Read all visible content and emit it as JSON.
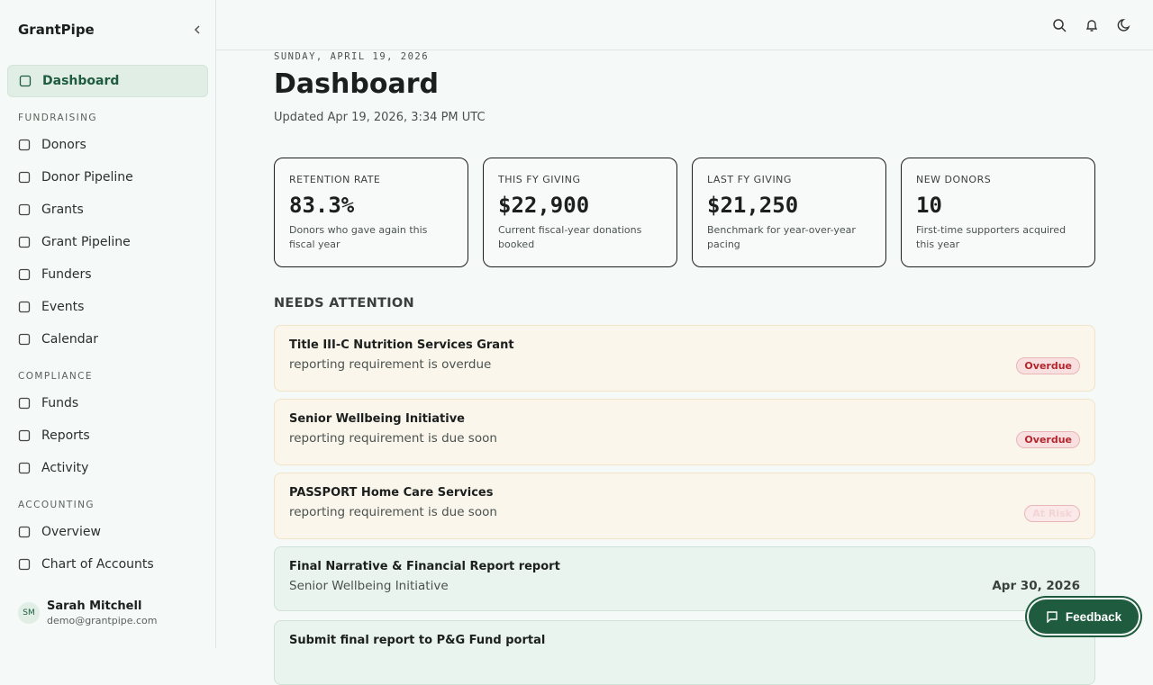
{
  "sidebar": {
    "brand": "GrantPipe",
    "active": "Dashboard",
    "sections": [
      {
        "title": "FUNDRAISING",
        "items": [
          "Donors",
          "Donor Pipeline",
          "Grants",
          "Grant Pipeline",
          "Funders",
          "Events",
          "Calendar"
        ]
      },
      {
        "title": "COMPLIANCE",
        "items": [
          "Funds",
          "Reports",
          "Activity"
        ]
      },
      {
        "title": "ACCOUNTING",
        "items": [
          "Overview",
          "Chart of Accounts"
        ]
      }
    ],
    "user": {
      "initials": "SM",
      "name": "Sarah Mitchell",
      "email": "demo@grantpipe.com"
    }
  },
  "page": {
    "date": "SUNDAY, APRIL 19, 2026",
    "title": "Dashboard",
    "updated": "Updated Apr 19, 2026, 3:34 PM UTC"
  },
  "stats": [
    {
      "label": "RETENTION RATE",
      "value": "83.3%",
      "note": "Donors who gave again this fiscal year"
    },
    {
      "label": "THIS FY GIVING",
      "value": "$22,900",
      "note": "Current fiscal-year donations booked"
    },
    {
      "label": "LAST FY GIVING",
      "value": "$21,250",
      "note": "Benchmark for year-over-year pacing"
    },
    {
      "label": "NEW DONORS",
      "value": "10",
      "note": "First-time supporters acquired this year"
    }
  ],
  "attention": {
    "title": "NEEDS ATTENTION",
    "items": [
      {
        "title": "Title III-C Nutrition Services Grant",
        "subtitle": "reporting requirement is overdue",
        "badge": "Overdue"
      },
      {
        "title": "Senior Wellbeing Initiative",
        "subtitle": "reporting requirement is due soon",
        "badge": "Overdue"
      },
      {
        "title": "PASSPORT Home Care Services",
        "subtitle": "reporting requirement is due soon",
        "badge": "At Risk"
      },
      {
        "title": "Final Narrative & Financial Report report",
        "subtitle": "Senior Wellbeing Initiative",
        "date": "Apr 30, 2026"
      },
      {
        "title": "Submit final report to P&G Fund portal",
        "subtitle": ""
      }
    ]
  },
  "feedback": "Feedback"
}
